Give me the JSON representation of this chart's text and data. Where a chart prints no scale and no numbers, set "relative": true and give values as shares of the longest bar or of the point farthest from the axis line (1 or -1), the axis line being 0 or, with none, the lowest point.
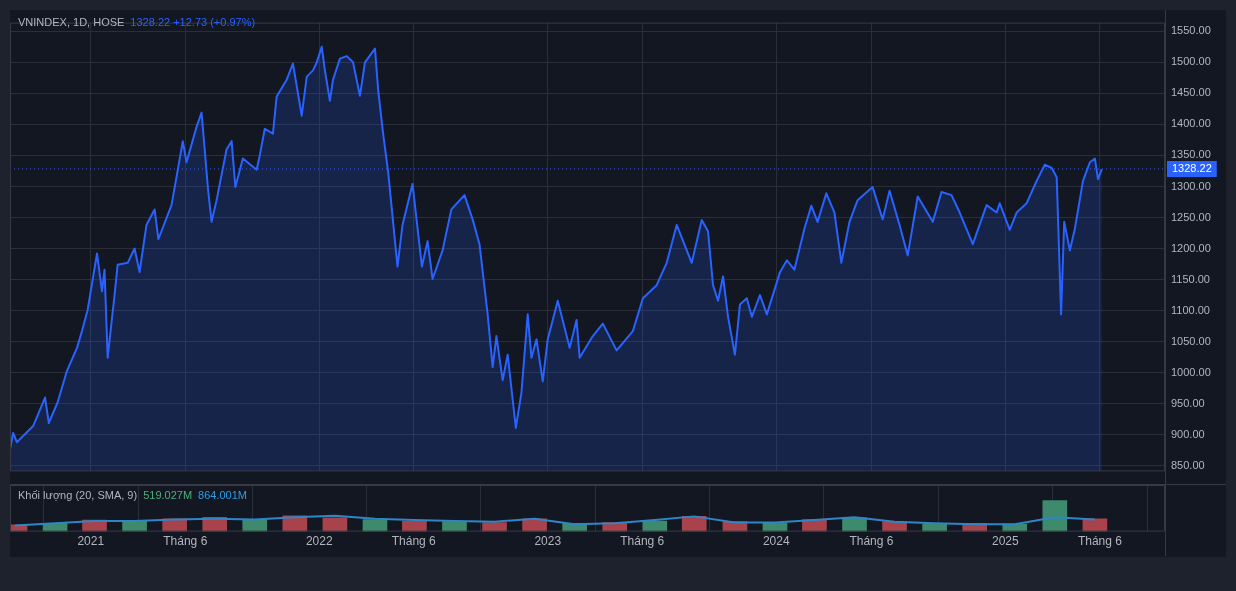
{
  "chart_data": [
    {
      "type": "area",
      "title": "VNINDEX, 1D, HOSE",
      "subtitle": "1328.22 +12.73 (+0.97%)",
      "x": [
        "2020-08-25",
        "2020-08-30",
        "2020-09-05",
        "2020-10-01",
        "2020-10-20",
        "2020-10-26",
        "2020-11-09",
        "2020-11-24",
        "2020-12-10",
        "2020-12-18",
        "2020-12-27",
        "2021-01-11",
        "2021-01-19",
        "2021-01-23",
        "2021-01-28",
        "2021-02-08",
        "2021-02-13",
        "2021-03-01",
        "2021-03-12",
        "2021-03-20",
        "2021-03-31",
        "2021-04-13",
        "2021-04-19",
        "2021-05-10",
        "2021-05-18",
        "2021-05-28",
        "2021-06-03",
        "2021-06-19",
        "2021-06-27",
        "2021-07-02",
        "2021-07-07",
        "2021-07-13",
        "2021-07-21",
        "2021-08-06",
        "2021-08-14",
        "2021-08-20",
        "2021-09-01",
        "2021-09-23",
        "2021-09-28",
        "2021-10-06",
        "2021-10-19",
        "2021-10-25",
        "2021-11-10",
        "2021-11-20",
        "2021-12-04",
        "2021-12-12",
        "2021-12-22",
        "2021-12-28",
        "2022-01-05",
        "2022-01-10",
        "2022-01-18",
        "2022-01-23",
        "2022-02-03",
        "2022-02-14",
        "2022-02-24",
        "2022-03-07",
        "2022-03-15",
        "2022-03-31",
        "2022-04-05",
        "2022-04-13",
        "2022-04-21",
        "2022-05-06",
        "2022-05-14",
        "2022-05-30",
        "2022-06-14",
        "2022-06-23",
        "2022-07-01",
        "2022-07-17",
        "2022-07-31",
        "2022-08-21",
        "2022-09-03",
        "2022-09-14",
        "2022-09-27",
        "2022-10-05",
        "2022-10-11",
        "2022-10-21",
        "2022-10-29",
        "2022-11-11",
        "2022-11-20",
        "2022-11-30",
        "2022-12-06",
        "2022-12-14",
        "2022-12-24",
        "2023-01-01",
        "2023-01-17",
        "2023-02-05",
        "2023-02-16",
        "2023-02-21",
        "2023-03-14",
        "2023-03-30",
        "2023-04-21",
        "2023-05-17",
        "2023-06-02",
        "2023-06-24",
        "2023-07-10",
        "2023-07-26",
        "2023-08-19",
        "2023-09-04",
        "2023-09-14",
        "2023-09-22",
        "2023-09-30",
        "2023-10-08",
        "2023-10-16",
        "2023-10-27",
        "2023-11-04",
        "2023-11-15",
        "2023-11-23",
        "2023-12-06",
        "2023-12-17",
        "2024-01-07",
        "2024-01-18",
        "2024-01-30",
        "2024-02-15",
        "2024-02-26",
        "2024-03-07",
        "2024-03-21",
        "2024-04-03",
        "2024-04-14",
        "2024-04-27",
        "2024-05-10",
        "2024-06-03",
        "2024-06-19",
        "2024-06-30",
        "2024-07-16",
        "2024-07-29",
        "2024-08-14",
        "2024-09-07",
        "2024-09-21",
        "2024-10-07",
        "2024-10-20",
        "2024-11-10",
        "2024-12-02",
        "2024-12-18",
        "2024-12-23",
        "2025-01-08",
        "2025-01-19",
        "2025-02-04",
        "2025-02-20",
        "2025-03-05",
        "2025-03-16",
        "2025-03-24",
        "2025-03-31",
        "2025-04-05",
        "2025-04-14",
        "2025-04-22",
        "2025-05-05",
        "2025-05-16",
        "2025-05-24",
        "2025-05-29",
        "2025-06-04"
      ],
      "series": [
        {
          "color": "#2962ff",
          "values": [
            876,
            903,
            888,
            914,
            960,
            919,
            952,
            1003,
            1040,
            1067,
            1101,
            1192,
            1131,
            1166,
            1024,
            1125,
            1174,
            1177,
            1200,
            1162,
            1238,
            1263,
            1215,
            1270,
            1315,
            1373,
            1339,
            1396,
            1419,
            1360,
            1299,
            1243,
            1278,
            1360,
            1373,
            1299,
            1345,
            1327,
            1350,
            1393,
            1385,
            1445,
            1472,
            1498,
            1414,
            1477,
            1487,
            1500,
            1525,
            1487,
            1438,
            1472,
            1506,
            1510,
            1500,
            1446,
            1500,
            1522,
            1457,
            1385,
            1324,
            1171,
            1238,
            1304,
            1171,
            1212,
            1151,
            1197,
            1263,
            1286,
            1247,
            1207,
            1094,
            1009,
            1059,
            988,
            1029,
            911,
            968,
            1094,
            1024,
            1054,
            986,
            1054,
            1116,
            1040,
            1085,
            1024,
            1059,
            1079,
            1036,
            1067,
            1120,
            1141,
            1177,
            1238,
            1177,
            1246,
            1228,
            1141,
            1116,
            1155,
            1090,
            1029,
            1110,
            1120,
            1090,
            1125,
            1094,
            1162,
            1181,
            1166,
            1232,
            1269,
            1243,
            1289,
            1258,
            1177,
            1243,
            1278,
            1299,
            1247,
            1293,
            1238,
            1189,
            1284,
            1243,
            1291,
            1286,
            1258,
            1207,
            1270,
            1258,
            1273,
            1230,
            1258,
            1273,
            1309,
            1335,
            1330,
            1315,
            1094,
            1243,
            1197,
            1232,
            1309,
            1339,
            1345,
            1312,
            1328
          ]
        }
      ],
      "xlim": [
        "2020-08-25",
        "2025-09-13"
      ],
      "xticks": [
        {
          "value": "2021-01-01",
          "label": null
        },
        {
          "value": "2021-06-01",
          "label": null
        },
        {
          "value": "2022-01-01",
          "label": null
        },
        {
          "value": "2022-06-01",
          "label": null
        },
        {
          "value": "2023-01-01",
          "label": null
        },
        {
          "value": "2023-06-01",
          "label": null
        },
        {
          "value": "2024-01-01",
          "label": null
        },
        {
          "value": "2024-06-01",
          "label": null
        },
        {
          "value": "2025-01-01",
          "label": null
        },
        {
          "value": "2025-06-01",
          "label": null
        }
      ],
      "ylim": [
        841,
        1564
      ],
      "yticks": [
        {
          "value": 850,
          "label": "850.00"
        },
        {
          "value": 900,
          "label": "900.00"
        },
        {
          "value": 950,
          "label": "950.00"
        },
        {
          "value": 1000,
          "label": "1000.00"
        },
        {
          "value": 1050,
          "label": "1050.00"
        },
        {
          "value": 1100,
          "label": "1100.00"
        },
        {
          "value": 1150,
          "label": "1150.00"
        },
        {
          "value": 1200,
          "label": "1200.00"
        },
        {
          "value": 1250,
          "label": "1250.00"
        },
        {
          "value": 1300,
          "label": "1300.00"
        },
        {
          "value": 1350,
          "label": "1350.00"
        },
        {
          "value": 1400,
          "label": "1400.00"
        },
        {
          "value": 1450,
          "label": "1450.00"
        },
        {
          "value": 1500,
          "label": "1500.00"
        },
        {
          "value": 1550,
          "label": "1550.00"
        }
      ],
      "grid": true,
      "tick_labels": "y",
      "ref_lines": [
        {
          "axis": "y",
          "value": 1328.22,
          "label": "1328.22",
          "color": "#2962ff",
          "line_style": "dotted"
        }
      ]
    },
    {
      "type": "bar",
      "title": "Khối lượng (20, SMA, 9)",
      "annotations": [
        "519.027M",
        "864.001M"
      ],
      "relative": true,
      "x": [
        "2020-09-02",
        "2020-11-05",
        "2021-01-07",
        "2021-03-12",
        "2021-05-15",
        "2021-07-18",
        "2021-09-20",
        "2021-11-23",
        "2022-01-26",
        "2022-03-31",
        "2022-06-02",
        "2022-08-05",
        "2022-10-08",
        "2022-12-11",
        "2023-02-13",
        "2023-04-18",
        "2023-06-21",
        "2023-08-23",
        "2023-10-27",
        "2023-12-30",
        "2024-03-02",
        "2024-05-05",
        "2024-07-08",
        "2024-09-10",
        "2024-11-13",
        "2025-01-16",
        "2025-03-21",
        "2025-05-24"
      ],
      "series": [
        {
          "colors": [
            "#a8434c",
            "#3e8a6c",
            "#a8434c",
            "#3e8a6c",
            "#a8434c",
            "#a8434c",
            "#3e8a6c",
            "#a8434c",
            "#a8434c",
            "#3e8a6c",
            "#a8434c",
            "#3e8a6c",
            "#a8434c",
            "#a8434c",
            "#3e8a6c",
            "#a8434c",
            "#3e8a6c",
            "#a8434c",
            "#a8434c",
            "#3e8a6c",
            "#a8434c",
            "#3e8a6c",
            "#a8434c",
            "#3e8a6c",
            "#a8434c",
            "#3e8a6c",
            "#3e8a6c",
            "#a8434c"
          ],
          "values": [
            0.22,
            0.27,
            0.37,
            0.34,
            0.41,
            0.46,
            0.39,
            0.51,
            0.44,
            0.39,
            0.34,
            0.32,
            0.29,
            0.41,
            0.27,
            0.29,
            0.34,
            0.49,
            0.32,
            0.27,
            0.39,
            0.44,
            0.32,
            0.24,
            0.27,
            0.24,
            1,
            0.41
          ]
        },
        {
          "type": "line",
          "color": "#2e86c8",
          "values": [
            0.2,
            0.27,
            0.34,
            0.34,
            0.39,
            0.41,
            0.39,
            0.46,
            0.51,
            0.41,
            0.37,
            0.34,
            0.32,
            0.41,
            0.24,
            0.27,
            0.37,
            0.49,
            0.29,
            0.29,
            0.37,
            0.46,
            0.32,
            0.27,
            0.24,
            0.24,
            0.46,
            0.39
          ]
        }
      ],
      "xlim": [
        "2020-08-25",
        "2025-09-13"
      ],
      "xticks": [
        {
          "value": "2021-01-01",
          "label": "2021"
        },
        {
          "value": "2021-06-01",
          "label": "Tháng 6"
        },
        {
          "value": "2022-01-01",
          "label": "2022"
        },
        {
          "value": "2022-06-01",
          "label": "Tháng 6"
        },
        {
          "value": "2023-01-01",
          "label": "2023"
        },
        {
          "value": "2023-06-01",
          "label": "Tháng 6"
        },
        {
          "value": "2024-01-01",
          "label": "2024"
        },
        {
          "value": "2024-06-01",
          "label": "Tháng 6"
        },
        {
          "value": "2025-01-01",
          "label": "2025"
        },
        {
          "value": "2025-06-01",
          "label": "Tháng 6"
        }
      ],
      "grid": "x",
      "tick_labels": "x"
    }
  ]
}
